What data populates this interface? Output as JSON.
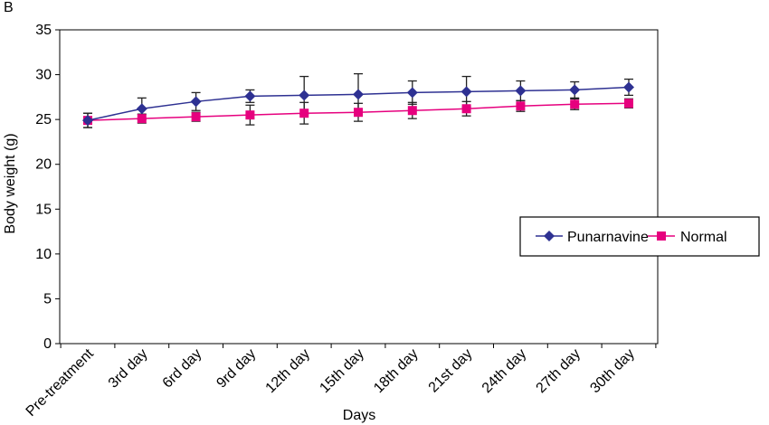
{
  "panel_label": "B",
  "chart_data": {
    "type": "line",
    "title": "",
    "xlabel": "Days",
    "ylabel": "Body weight (g)",
    "ylim": [
      0,
      35
    ],
    "yticks": [
      0,
      5,
      10,
      15,
      20,
      25,
      30,
      35
    ],
    "categories": [
      "Pre-treatment",
      "3rd day",
      "6rd day",
      "9rd day",
      "12th day",
      "15th day",
      "18th day",
      "21st day",
      "24th day",
      "27th day",
      "30th day"
    ],
    "legend_position": "right",
    "grid": false,
    "series": [
      {
        "name": "Punarnavine",
        "color": "#2e3192",
        "marker": "diamond",
        "values": [
          24.9,
          26.2,
          27.0,
          27.6,
          27.7,
          27.8,
          28.0,
          28.1,
          28.2,
          28.3,
          28.6
        ],
        "errors": [
          0.8,
          1.2,
          1.0,
          0.7,
          2.1,
          2.3,
          1.3,
          1.7,
          1.1,
          0.9,
          0.9
        ]
      },
      {
        "name": "Normal",
        "color": "#e6007e",
        "marker": "square",
        "values": [
          24.9,
          25.1,
          25.3,
          25.5,
          25.7,
          25.8,
          26.0,
          26.2,
          26.5,
          26.7,
          26.8
        ],
        "errors": [
          0.8,
          0.5,
          0.5,
          1.1,
          1.2,
          1.0,
          0.9,
          0.8,
          0.6,
          0.6,
          0.5
        ]
      }
    ]
  }
}
